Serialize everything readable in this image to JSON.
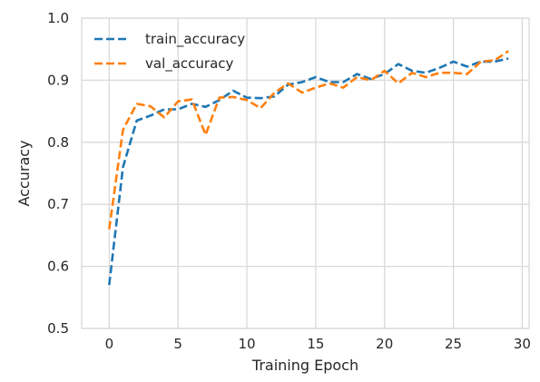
{
  "chart_data": {
    "type": "line",
    "xlabel": "Training Epoch",
    "ylabel": "Accuracy",
    "xlim": [
      -2,
      30.5
    ],
    "ylim": [
      0.5,
      1.0
    ],
    "xticks": [
      "0",
      "5",
      "10",
      "15",
      "20",
      "25",
      "30"
    ],
    "yticks": [
      "0.5",
      "0.6",
      "0.7",
      "0.8",
      "0.9",
      "1.0"
    ],
    "grid": true,
    "legend_position": "upper-left",
    "line_style": "dashed",
    "x": [
      0,
      1,
      2,
      3,
      4,
      5,
      6,
      7,
      8,
      9,
      10,
      11,
      12,
      13,
      14,
      15,
      16,
      17,
      18,
      19,
      20,
      21,
      22,
      23,
      24,
      25,
      26,
      27,
      28,
      29
    ],
    "series": [
      {
        "name": "train_accuracy",
        "color": "#1f77b4",
        "values": [
          0.57,
          0.76,
          0.835,
          0.843,
          0.853,
          0.853,
          0.862,
          0.857,
          0.868,
          0.883,
          0.872,
          0.871,
          0.874,
          0.893,
          0.897,
          0.905,
          0.897,
          0.897,
          0.91,
          0.902,
          0.91,
          0.926,
          0.915,
          0.912,
          0.92,
          0.93,
          0.922,
          0.93,
          0.93,
          0.935
        ]
      },
      {
        "name": "val_accuracy",
        "color": "#ff7f0e",
        "values": [
          0.66,
          0.82,
          0.862,
          0.858,
          0.84,
          0.866,
          0.869,
          0.812,
          0.872,
          0.873,
          0.868,
          0.855,
          0.88,
          0.895,
          0.88,
          0.888,
          0.895,
          0.888,
          0.905,
          0.9,
          0.915,
          0.895,
          0.912,
          0.905,
          0.912,
          0.912,
          0.91,
          0.93,
          0.932,
          0.947
        ]
      }
    ]
  }
}
